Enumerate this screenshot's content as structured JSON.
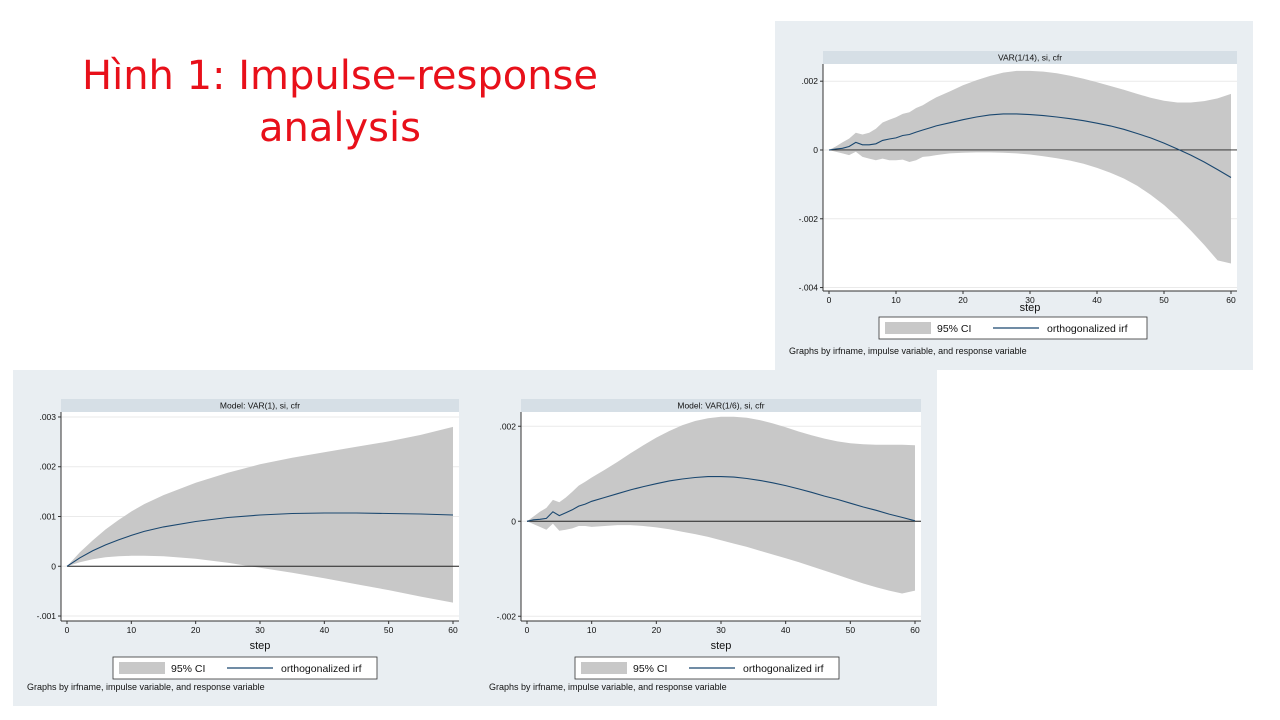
{
  "slide_title": "Hình 1: Impulse–response\nanalysis",
  "colors": {
    "title": "#e8101a",
    "panel_bg": "#e9eef2",
    "plot_bg": "#ffffff",
    "header_bg": "#d6dfe6",
    "ci_fill": "#c8c8c8",
    "irf_line": "#1a476f"
  },
  "chart_data": [
    {
      "type": "area",
      "title": "VAR(1/14), si, cfr",
      "xlabel": "step",
      "ylabel": "",
      "xlim": [
        0,
        60
      ],
      "ylim": [
        -0.0041,
        0.0025
      ],
      "xticks": [
        0,
        10,
        20,
        30,
        40,
        50,
        60
      ],
      "yticks": [
        0.002,
        0,
        -0.002,
        -0.004
      ],
      "ytick_labels": [
        ".002",
        "0",
        "-.002",
        "-.004"
      ],
      "zero_line": true,
      "grid": true,
      "legend": {
        "position": "bottom",
        "ci_label": "95% CI",
        "irf_label": "orthogonalized irf"
      },
      "note": "Graphs by irfname, impulse variable, and response variable",
      "x": [
        0,
        1,
        2,
        3,
        4,
        5,
        6,
        7,
        8,
        9,
        10,
        11,
        12,
        13,
        14,
        15,
        16,
        18,
        20,
        22,
        24,
        26,
        28,
        30,
        32,
        34,
        36,
        38,
        40,
        42,
        44,
        46,
        48,
        50,
        52,
        54,
        56,
        58,
        60
      ],
      "series": [
        {
          "role": "irf",
          "values": [
            0,
            3e-05,
            5e-05,
            0.0001,
            0.00022,
            0.00015,
            0.00015,
            0.00018,
            0.00028,
            0.00032,
            0.00035,
            0.00042,
            0.00045,
            0.00052,
            0.00058,
            0.00064,
            0.0007,
            0.00079,
            0.00088,
            0.00096,
            0.00102,
            0.00105,
            0.00105,
            0.00103,
            0.001,
            0.00096,
            0.00091,
            0.00085,
            0.00078,
            0.0007,
            0.0006,
            0.00048,
            0.00035,
            0.0002,
            3e-05,
            -0.00015,
            -0.00035,
            -0.00057,
            -0.0008
          ]
        },
        {
          "role": "ci_upper",
          "values": [
            0,
            0.0001,
            0.00022,
            0.00033,
            0.0005,
            0.00045,
            0.0005,
            0.00062,
            0.0008,
            0.00088,
            0.00095,
            0.00105,
            0.0011,
            0.00122,
            0.0013,
            0.00142,
            0.00153,
            0.0017,
            0.00188,
            0.00203,
            0.00215,
            0.00225,
            0.0023,
            0.0023,
            0.00228,
            0.00223,
            0.00216,
            0.00207,
            0.00197,
            0.00186,
            0.00175,
            0.00163,
            0.00152,
            0.00143,
            0.00138,
            0.00138,
            0.00142,
            0.0015,
            0.00163
          ]
        },
        {
          "role": "ci_lower",
          "values": [
            0,
            -5e-05,
            -0.0001,
            -0.00015,
            -5e-05,
            -0.0002,
            -0.00025,
            -0.0003,
            -0.00025,
            -0.0003,
            -0.0003,
            -0.00028,
            -0.00035,
            -0.0003,
            -0.0002,
            -0.00018,
            -0.00015,
            -0.0001,
            -8e-05,
            -7e-05,
            -7e-05,
            -8e-05,
            -0.0001,
            -0.00013,
            -0.00018,
            -0.00024,
            -0.00031,
            -0.0004,
            -0.00052,
            -0.00066,
            -0.00083,
            -0.00104,
            -0.0013,
            -0.0016,
            -0.00195,
            -0.00234,
            -0.00276,
            -0.00321,
            -0.0033
          ]
        }
      ]
    },
    {
      "type": "area",
      "title": "Model: VAR(1), si, cfr",
      "xlabel": "step",
      "ylabel": "",
      "xlim": [
        0,
        60
      ],
      "ylim": [
        -0.0011,
        0.0031
      ],
      "xticks": [
        0,
        10,
        20,
        30,
        40,
        50,
        60
      ],
      "yticks": [
        0.003,
        0.002,
        0.001,
        0,
        -0.001
      ],
      "ytick_labels": [
        ".003",
        ".002",
        ".001",
        "0",
        "-.001"
      ],
      "zero_line": true,
      "grid": true,
      "legend": {
        "position": "bottom",
        "ci_label": "95% CI",
        "irf_label": "orthogonalized irf"
      },
      "note": "Graphs by irfname, impulse variable, and response variable",
      "x": [
        0,
        2,
        4,
        6,
        8,
        10,
        12,
        15,
        20,
        25,
        30,
        35,
        40,
        45,
        50,
        55,
        60
      ],
      "series": [
        {
          "role": "irf",
          "values": [
            0,
            0.00017,
            0.00031,
            0.00043,
            0.00053,
            0.00062,
            0.0007,
            0.00079,
            0.0009,
            0.00098,
            0.00103,
            0.00106,
            0.00107,
            0.00107,
            0.00106,
            0.00105,
            0.00103
          ]
        },
        {
          "role": "ci_upper",
          "values": [
            0,
            0.00028,
            0.00052,
            0.00074,
            0.00093,
            0.0011,
            0.00125,
            0.00143,
            0.00168,
            0.00188,
            0.00205,
            0.00218,
            0.00229,
            0.0024,
            0.00251,
            0.00264,
            0.0028
          ]
        },
        {
          "role": "ci_lower",
          "values": [
            0,
            8e-05,
            0.00014,
            0.00018,
            0.0002,
            0.00021,
            0.00021,
            0.0002,
            0.00015,
            7e-05,
            -3e-05,
            -0.00013,
            -0.00024,
            -0.00036,
            -0.00048,
            -0.00061,
            -0.00073
          ]
        }
      ]
    },
    {
      "type": "area",
      "title": "Model: VAR(1/6), si, cfr",
      "xlabel": "step",
      "ylabel": "",
      "xlim": [
        0,
        60
      ],
      "ylim": [
        -0.0021,
        0.0023
      ],
      "xticks": [
        0,
        10,
        20,
        30,
        40,
        50,
        60
      ],
      "yticks": [
        0.002,
        0,
        -0.002
      ],
      "ytick_labels": [
        ".002",
        "0",
        "-.002"
      ],
      "zero_line": true,
      "grid": true,
      "legend": {
        "position": "bottom",
        "ci_label": "95% CI",
        "irf_label": "orthogonalized irf"
      },
      "note": "Graphs by irfname, impulse variable, and response variable",
      "x": [
        0,
        1,
        2,
        3,
        4,
        5,
        6,
        7,
        8,
        9,
        10,
        12,
        14,
        16,
        18,
        20,
        22,
        24,
        26,
        28,
        30,
        32,
        34,
        36,
        38,
        40,
        42,
        44,
        46,
        48,
        50,
        52,
        54,
        56,
        58,
        60
      ],
      "series": [
        {
          "role": "irf",
          "values": [
            0,
            3e-05,
            4e-05,
            6e-05,
            0.0002,
            0.00012,
            0.00018,
            0.00024,
            0.00032,
            0.00036,
            0.00042,
            0.0005,
            0.00058,
            0.00066,
            0.00073,
            0.00079,
            0.00085,
            0.00089,
            0.00092,
            0.00094,
            0.00094,
            0.00093,
            0.0009,
            0.00086,
            0.00081,
            0.00075,
            0.00068,
            0.00061,
            0.00053,
            0.00046,
            0.00038,
            0.0003,
            0.00023,
            0.00015,
            8e-05,
            1e-05
          ]
        },
        {
          "role": "ci_upper",
          "values": [
            0,
            0.0001,
            0.0002,
            0.00028,
            0.00045,
            0.0004,
            0.0005,
            0.00062,
            0.00075,
            0.00083,
            0.00092,
            0.00108,
            0.00125,
            0.00143,
            0.0016,
            0.00176,
            0.0019,
            0.00202,
            0.00211,
            0.00217,
            0.0022,
            0.0022,
            0.00218,
            0.00213,
            0.00206,
            0.00198,
            0.00189,
            0.00181,
            0.00174,
            0.00168,
            0.00164,
            0.00162,
            0.00161,
            0.00161,
            0.00161,
            0.0016
          ]
        },
        {
          "role": "ci_lower",
          "values": [
            0,
            -6e-05,
            -0.00012,
            -0.00018,
            -5e-05,
            -0.0002,
            -0.00018,
            -0.00015,
            -0.0001,
            -0.0001,
            -0.00012,
            -0.0001,
            -8e-05,
            -8e-05,
            -0.0001,
            -0.00013,
            -0.00017,
            -0.00022,
            -0.00027,
            -0.00033,
            -0.0004,
            -0.00047,
            -0.00054,
            -0.00062,
            -0.0007,
            -0.00078,
            -0.00086,
            -0.00095,
            -0.00104,
            -0.00113,
            -0.00122,
            -0.00131,
            -0.00139,
            -0.00146,
            -0.00152,
            -0.00146
          ]
        }
      ]
    }
  ]
}
